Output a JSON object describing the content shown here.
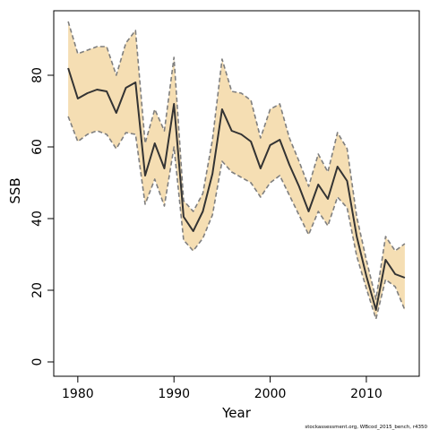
{
  "chart_data": {
    "type": "area",
    "xlabel": "Year",
    "ylabel": "SSB",
    "footnote": "stockassessment.org, WBcod_2015_bench, r4350",
    "xlim": [
      1977.5,
      2015.5
    ],
    "ylim": [
      -4,
      98
    ],
    "xticks": [
      1980,
      1990,
      2000,
      2010
    ],
    "yticks": [
      0,
      20,
      40,
      60,
      80
    ],
    "grid": false,
    "legend": "none",
    "colors": {
      "band": "#f5deb3",
      "line": "#333333",
      "bound": "#7f7f7f",
      "axis": "#000000"
    },
    "x": [
      1979,
      1980,
      1981,
      1982,
      1983,
      1984,
      1985,
      1986,
      1987,
      1988,
      1989,
      1990,
      1991,
      1992,
      1993,
      1994,
      1995,
      1996,
      1997,
      1998,
      1999,
      2000,
      2001,
      2002,
      2003,
      2004,
      2005,
      2006,
      2007,
      2008,
      2009,
      2010,
      2011,
      2012,
      2013,
      2014
    ],
    "series": [
      {
        "role": "estimate",
        "values": [
          82,
          73.5,
          75,
          76,
          75.5,
          69.5,
          76.5,
          78,
          52,
          61,
          54,
          72,
          40.5,
          36.5,
          42,
          52.5,
          70.5,
          64.5,
          63.5,
          61.5,
          54,
          60.5,
          62,
          55,
          49,
          42,
          49.5,
          45.5,
          54.5,
          50.5,
          35,
          24,
          14.5,
          28.5,
          24.5,
          23.5
        ]
      },
      {
        "role": "upper",
        "values": [
          95,
          86,
          87,
          88,
          88,
          80,
          89,
          92.5,
          61,
          70.5,
          64.5,
          85,
          45,
          42,
          47,
          62,
          84.5,
          75.5,
          75,
          73,
          62.5,
          70.5,
          72,
          62.5,
          56,
          49,
          58,
          53,
          64,
          59.5,
          40.5,
          28.5,
          17.5,
          35,
          31,
          33
        ]
      },
      {
        "role": "lower",
        "values": [
          68.5,
          61.5,
          63.5,
          64.5,
          63.5,
          59.5,
          64,
          63.5,
          44,
          51,
          43.5,
          60,
          34,
          31,
          34.5,
          41,
          56,
          53,
          51.5,
          50,
          46,
          50,
          52,
          46.5,
          41,
          35.5,
          42,
          38,
          46,
          43,
          29.5,
          20.5,
          12,
          23,
          21,
          14.5
        ]
      }
    ]
  }
}
